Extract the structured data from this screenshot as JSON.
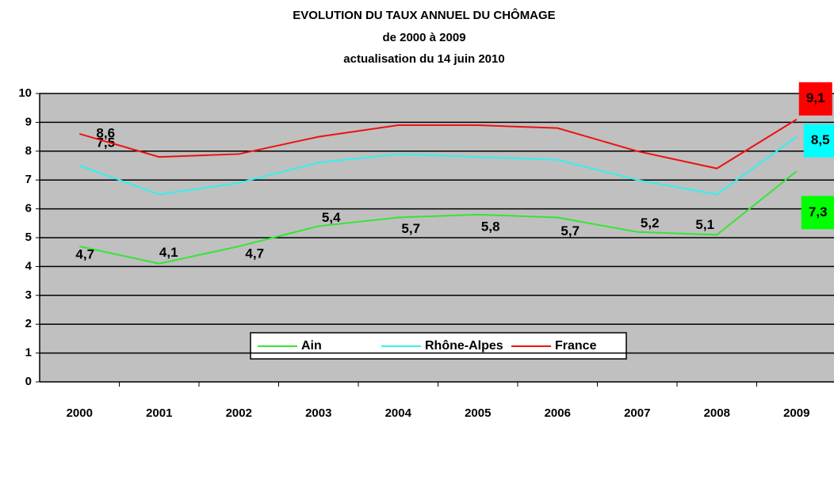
{
  "chart_data": {
    "type": "line",
    "title": [
      "EVOLUTION DU TAUX ANNUEL DU CHÔMAGE",
      "de 2000 à 2009",
      "actualisation du 14 juin 2010"
    ],
    "categories": [
      "2000",
      "2001",
      "2002",
      "2003",
      "2004",
      "2005",
      "2006",
      "2007",
      "2008",
      "2009"
    ],
    "series": [
      {
        "name": "Ain",
        "color": "#33e633",
        "box_color": "#00ff00",
        "values": [
          4.7,
          4.1,
          4.7,
          5.4,
          5.7,
          5.8,
          5.7,
          5.2,
          5.1,
          7.3
        ],
        "value_labels": [
          "4,7",
          "4,1",
          "4,7",
          "5,4",
          "5,7",
          "5,8",
          "5,7",
          "5,2",
          "5,1",
          "7,3"
        ]
      },
      {
        "name": "Rhône-Alpes",
        "color": "#33f0f0",
        "box_color": "#00ffff",
        "values": [
          7.5,
          6.5,
          6.9,
          7.6,
          7.9,
          7.8,
          7.7,
          7.0,
          6.5,
          8.5
        ],
        "value_labels": [
          "7,5",
          null,
          null,
          null,
          null,
          null,
          null,
          null,
          null,
          "8,5"
        ]
      },
      {
        "name": "France",
        "color": "#ee1111",
        "box_color": "#ff0000",
        "values": [
          8.6,
          7.8,
          7.9,
          8.5,
          8.9,
          8.9,
          8.8,
          8.0,
          7.4,
          9.1
        ],
        "value_labels": [
          "8,6",
          null,
          null,
          null,
          null,
          null,
          null,
          null,
          null,
          "9,1"
        ]
      }
    ],
    "ylim": [
      0,
      10
    ],
    "yticks": [
      0,
      1,
      2,
      3,
      4,
      5,
      6,
      7,
      8,
      9,
      10
    ],
    "grid": true,
    "legend": "bottom"
  }
}
